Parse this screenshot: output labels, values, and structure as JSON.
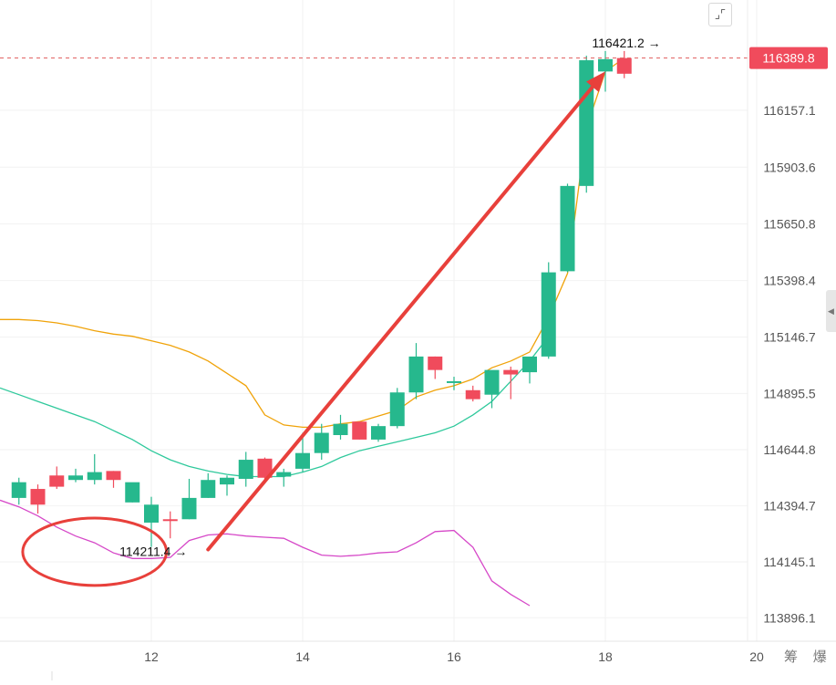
{
  "toolbar": {
    "fullscreen_icon": "fullscreen-icon",
    "side_panel_icon": "chevron-left-icon"
  },
  "brand": {
    "label": "筹 爆"
  },
  "colors": {
    "up": "#26b88d",
    "down": "#f04b5c",
    "band_upper": "#f0a30a",
    "band_mid": "#2fc99c",
    "band_lower": "#d648c8",
    "arrow": "#e8403b",
    "grid": "#f2f2f2",
    "axis_text": "#555555",
    "last_price_bg": "#f04b5c",
    "dash": "#e05c5c"
  },
  "chart_data": {
    "type": "candlestick",
    "title": "",
    "x_ticks": [
      {
        "x": 12,
        "label": "12"
      },
      {
        "x": 14,
        "label": "14"
      },
      {
        "x": 16,
        "label": "16"
      },
      {
        "x": 18,
        "label": "18"
      },
      {
        "x": 20,
        "label": "20"
      }
    ],
    "xlim": [
      10.25,
      20.95
    ],
    "ylim": [
      113820,
      116620
    ],
    "y_ticks": [
      {
        "value": 116157.1,
        "label": "116157.1"
      },
      {
        "value": 115903.6,
        "label": "115903.6"
      },
      {
        "value": 115650.8,
        "label": "115650.8"
      },
      {
        "value": 115398.4,
        "label": "115398.4"
      },
      {
        "value": 115146.7,
        "label": "115146.7"
      },
      {
        "value": 114895.5,
        "label": "114895.5"
      },
      {
        "value": 114644.8,
        "label": "114644.8"
      },
      {
        "value": 114394.7,
        "label": "114394.7"
      },
      {
        "value": 114145.1,
        "label": "114145.1"
      },
      {
        "value": 113896.1,
        "label": "113896.1"
      }
    ],
    "last_price": {
      "value": 116389.8,
      "label": "116389.8"
    },
    "annotations": [
      {
        "label": "116421.2 →",
        "x": 19.0,
        "value": 116421.2,
        "kind": "high"
      },
      {
        "label": "114211.4 →",
        "x": 12.75,
        "value": 114211.4,
        "kind": "low"
      }
    ],
    "candles": [
      {
        "x": 10.25,
        "open": 114430,
        "high": 114520,
        "low": 114400,
        "close": 114500
      },
      {
        "x": 10.5,
        "open": 114470,
        "high": 114490,
        "low": 114360,
        "close": 114400
      },
      {
        "x": 10.75,
        "open": 114530,
        "high": 114570,
        "low": 114470,
        "close": 114480
      },
      {
        "x": 11.0,
        "open": 114510,
        "high": 114560,
        "low": 114500,
        "close": 114530
      },
      {
        "x": 11.25,
        "open": 114510,
        "high": 114625,
        "low": 114490,
        "close": 114545
      },
      {
        "x": 11.5,
        "open": 114550,
        "high": 114550,
        "low": 114475,
        "close": 114510
      },
      {
        "x": 11.75,
        "open": 114410,
        "high": 114495,
        "low": 114410,
        "close": 114500
      },
      {
        "x": 12.0,
        "open": 114320,
        "high": 114435,
        "low": 114211.4,
        "close": 114400
      },
      {
        "x": 12.25,
        "open": 114335,
        "high": 114370,
        "low": 114250,
        "close": 114330
      },
      {
        "x": 12.5,
        "open": 114335,
        "high": 114515,
        "low": 114335,
        "close": 114430
      },
      {
        "x": 12.75,
        "open": 114430,
        "high": 114540,
        "low": 114430,
        "close": 114510
      },
      {
        "x": 13.0,
        "open": 114490,
        "high": 114530,
        "low": 114440,
        "close": 114520
      },
      {
        "x": 13.25,
        "open": 114515,
        "high": 114635,
        "low": 114480,
        "close": 114600
      },
      {
        "x": 13.5,
        "open": 114605,
        "high": 114610,
        "low": 114510,
        "close": 114520
      },
      {
        "x": 13.75,
        "open": 114525,
        "high": 114560,
        "low": 114480,
        "close": 114545
      },
      {
        "x": 14.0,
        "open": 114560,
        "high": 114720,
        "low": 114545,
        "close": 114630
      },
      {
        "x": 14.25,
        "open": 114630,
        "high": 114760,
        "low": 114600,
        "close": 114720
      },
      {
        "x": 14.5,
        "open": 114710,
        "high": 114800,
        "low": 114690,
        "close": 114760
      },
      {
        "x": 14.75,
        "open": 114770,
        "high": 114770,
        "low": 114690,
        "close": 114690
      },
      {
        "x": 15.0,
        "open": 114690,
        "high": 114760,
        "low": 114680,
        "close": 114750
      },
      {
        "x": 15.25,
        "open": 114750,
        "high": 114920,
        "low": 114740,
        "close": 114900
      },
      {
        "x": 15.5,
        "open": 114900,
        "high": 115120,
        "low": 114870,
        "close": 115060
      },
      {
        "x": 15.75,
        "open": 115060,
        "high": 115060,
        "low": 114960,
        "close": 115000
      },
      {
        "x": 16.0,
        "open": 114950,
        "high": 114970,
        "low": 114910,
        "close": 114950
      },
      {
        "x": 16.25,
        "open": 114910,
        "high": 114930,
        "low": 114860,
        "close": 114870
      },
      {
        "x": 16.5,
        "open": 114890,
        "high": 114985,
        "low": 114830,
        "close": 115000
      },
      {
        "x": 16.75,
        "open": 115000,
        "high": 115015,
        "low": 114870,
        "close": 114980
      },
      {
        "x": 17.0,
        "open": 114990,
        "high": 115050,
        "low": 114940,
        "close": 115060
      },
      {
        "x": 17.25,
        "open": 115060,
        "high": 115480,
        "low": 115050,
        "close": 115435
      },
      {
        "x": 17.5,
        "open": 115440,
        "high": 115830,
        "low": 115435,
        "close": 115820
      },
      {
        "x": 17.75,
        "open": 115820,
        "high": 116400,
        "low": 115790,
        "close": 116380
      },
      {
        "x": 18.0,
        "open": 116330,
        "high": 116421.2,
        "low": 116240,
        "close": 116385
      },
      {
        "x": 18.25,
        "open": 116389.8,
        "high": 116421.2,
        "low": 116300,
        "close": 116320
      }
    ],
    "series": [
      {
        "name": "upper_band",
        "color": "#f0a30a",
        "points": [
          [
            10.0,
            115225
          ],
          [
            10.25,
            115225
          ],
          [
            10.5,
            115220
          ],
          [
            10.75,
            115210
          ],
          [
            11.0,
            115195
          ],
          [
            11.25,
            115175
          ],
          [
            11.5,
            115160
          ],
          [
            11.75,
            115150
          ],
          [
            12.0,
            115130
          ],
          [
            12.25,
            115110
          ],
          [
            12.5,
            115080
          ],
          [
            12.75,
            115040
          ],
          [
            13.0,
            114985
          ],
          [
            13.25,
            114930
          ],
          [
            13.5,
            114800
          ],
          [
            13.75,
            114755
          ],
          [
            14.0,
            114745
          ],
          [
            14.25,
            114745
          ],
          [
            14.5,
            114760
          ],
          [
            14.75,
            114770
          ],
          [
            15.0,
            114795
          ],
          [
            15.25,
            114820
          ],
          [
            15.5,
            114880
          ],
          [
            15.75,
            114910
          ],
          [
            16.0,
            114930
          ],
          [
            16.25,
            114960
          ],
          [
            16.5,
            115010
          ],
          [
            16.75,
            115040
          ],
          [
            17.0,
            115080
          ],
          [
            17.25,
            115235
          ],
          [
            17.5,
            115430
          ],
          [
            17.75,
            116080
          ],
          [
            18.0,
            116330
          ],
          [
            18.25,
            116390
          ]
        ]
      },
      {
        "name": "middle_band",
        "color": "#2fc99c",
        "points": [
          [
            10.0,
            114920
          ],
          [
            10.25,
            114890
          ],
          [
            10.5,
            114860
          ],
          [
            10.75,
            114830
          ],
          [
            11.0,
            114800
          ],
          [
            11.25,
            114770
          ],
          [
            11.5,
            114730
          ],
          [
            11.75,
            114690
          ],
          [
            12.0,
            114640
          ],
          [
            12.25,
            114600
          ],
          [
            12.5,
            114570
          ],
          [
            12.75,
            114550
          ],
          [
            13.0,
            114535
          ],
          [
            13.25,
            114525
          ],
          [
            13.5,
            114525
          ],
          [
            13.75,
            114525
          ],
          [
            14.0,
            114545
          ],
          [
            14.25,
            114570
          ],
          [
            14.5,
            114610
          ],
          [
            14.75,
            114640
          ],
          [
            15.0,
            114660
          ],
          [
            15.25,
            114680
          ],
          [
            15.5,
            114700
          ],
          [
            15.75,
            114720
          ],
          [
            16.0,
            114750
          ],
          [
            16.25,
            114800
          ],
          [
            16.5,
            114860
          ],
          [
            16.75,
            114950
          ],
          [
            17.0,
            115040
          ],
          [
            17.25,
            115150
          ]
        ]
      },
      {
        "name": "lower_band",
        "color": "#d648c8",
        "points": [
          [
            10.0,
            114420
          ],
          [
            10.25,
            114390
          ],
          [
            10.5,
            114350
          ],
          [
            10.75,
            114300
          ],
          [
            11.0,
            114260
          ],
          [
            11.25,
            114230
          ],
          [
            11.5,
            114185
          ],
          [
            11.75,
            114160
          ],
          [
            12.0,
            114160
          ],
          [
            12.25,
            114165
          ],
          [
            12.5,
            114240
          ],
          [
            12.75,
            114265
          ],
          [
            13.0,
            114270
          ],
          [
            13.25,
            114260
          ],
          [
            13.5,
            114255
          ],
          [
            13.75,
            114250
          ],
          [
            14.0,
            114210
          ],
          [
            14.25,
            114175
          ],
          [
            14.5,
            114170
          ],
          [
            14.75,
            114175
          ],
          [
            15.0,
            114185
          ],
          [
            15.25,
            114190
          ],
          [
            15.5,
            114230
          ],
          [
            15.75,
            114280
          ],
          [
            16.0,
            114285
          ],
          [
            16.25,
            114210
          ],
          [
            16.5,
            114060
          ],
          [
            16.75,
            114000
          ],
          [
            17.0,
            113950
          ]
        ]
      }
    ],
    "arrow": {
      "from": [
        12.75,
        114200
      ],
      "to": [
        18.0,
        116330
      ]
    },
    "circle": {
      "center": [
        11.25,
        114190
      ],
      "rx_units": 0.95,
      "ry_units": 150
    }
  }
}
